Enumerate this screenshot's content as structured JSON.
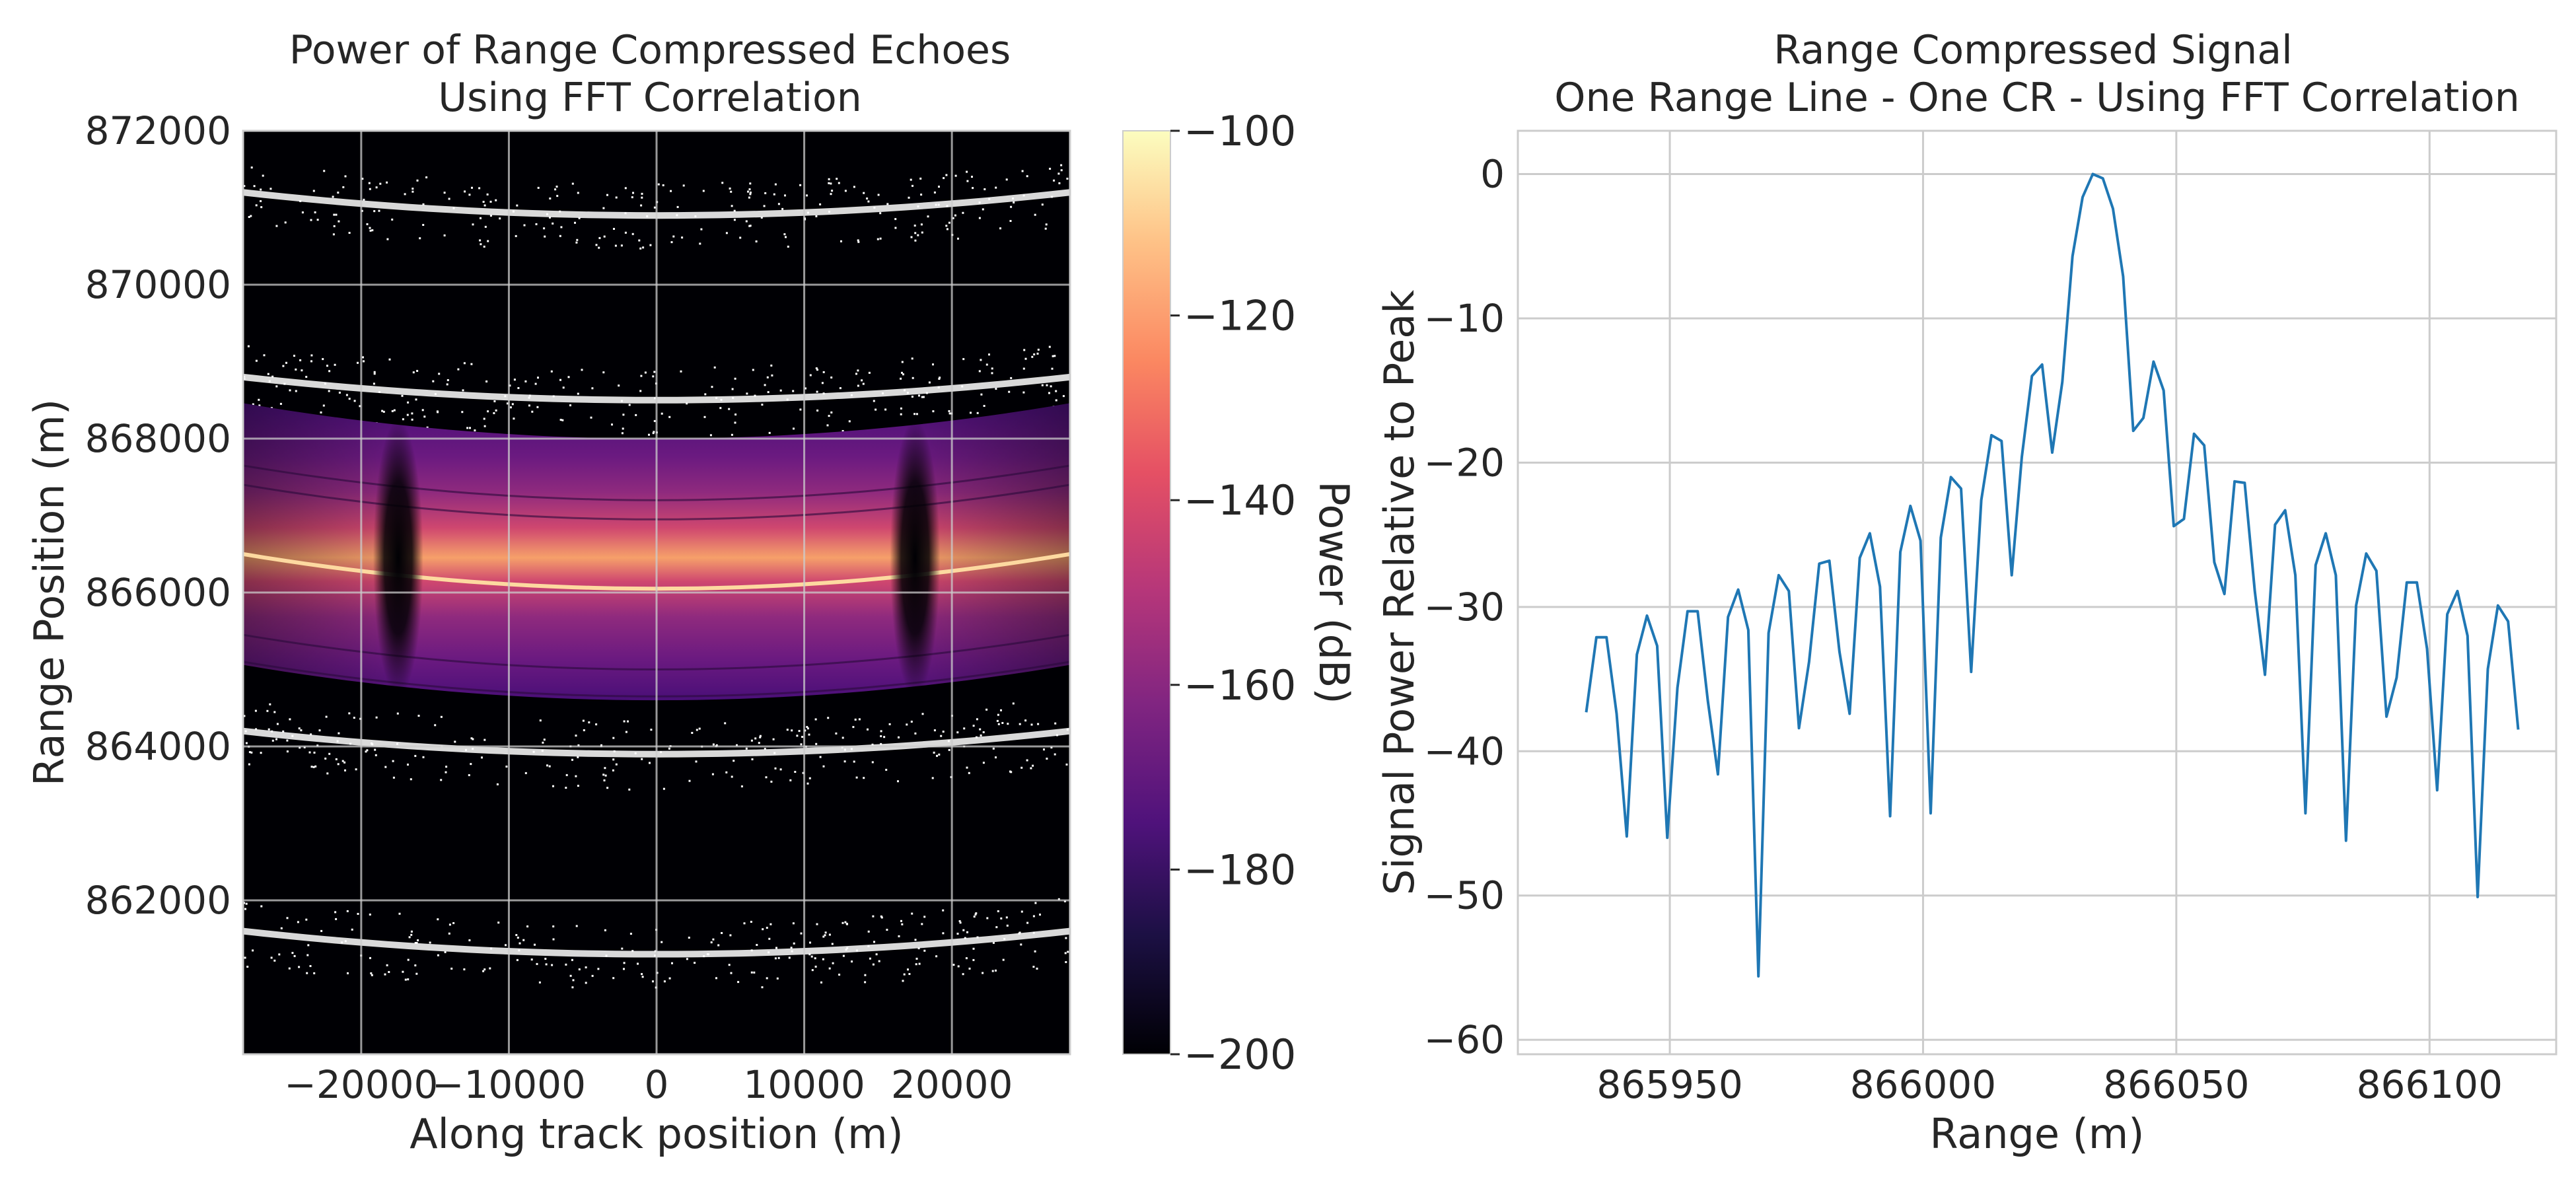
{
  "chart_data": [
    {
      "type": "heatmap",
      "title": [
        "Power of Range Compressed Echoes",
        "Using FFT Correlation"
      ],
      "xlabel": "Along track position (m)",
      "ylabel": "Range Position (m)",
      "xlim": [
        -28000,
        28000
      ],
      "ylim": [
        860000,
        872000
      ],
      "xticks": [
        -20000,
        -10000,
        0,
        10000,
        20000
      ],
      "xtick_labels": [
        "−20000",
        "−10000",
        "0",
        "10000",
        "20000"
      ],
      "yticks": [
        862000,
        864000,
        866000,
        868000,
        870000,
        872000
      ],
      "ytick_labels": [
        "862000",
        "864000",
        "866000",
        "868000",
        "870000",
        "872000"
      ],
      "grid": true,
      "colormap": "magma",
      "colorbar": {
        "label": "Power (dB)",
        "range": [
          -200,
          -100
        ],
        "ticks": [
          -200,
          -180,
          -160,
          -140,
          -120,
          -100
        ],
        "tick_labels": [
          "−200",
          "−180",
          "−160",
          "−140",
          "−120",
          "−100"
        ]
      },
      "signal_band": {
        "range_low": 864600,
        "range_high": 868000,
        "curvature_m": 460
      },
      "peak_curve": {
        "center_range": 866050,
        "edge_range": 866500
      },
      "null_columns_along_track": [
        -17500,
        17500
      ],
      "noise_arcs_center_range": [
        861300,
        863900,
        868500,
        870900
      ]
    },
    {
      "type": "line",
      "title": [
        "Range Compressed Signal",
        "One Range Line - One CR - Using FFT Correlation"
      ],
      "xlabel": "Range  (m)",
      "ylabel": "Signal Power Relative to Peak",
      "xlim": [
        865920,
        866125
      ],
      "ylim": [
        -61,
        3
      ],
      "xticks": [
        865950,
        866000,
        866050,
        866100
      ],
      "xtick_labels": [
        "865950",
        "866000",
        "866050",
        "866100"
      ],
      "yticks": [
        0,
        -10,
        -20,
        -30,
        -40,
        -50,
        -60
      ],
      "ytick_labels": [
        "0",
        "−10",
        "−20",
        "−30",
        "−40",
        "−50",
        "−60"
      ],
      "grid": true,
      "series": [
        {
          "color": "#1f77b4",
          "x": [
            865933.5,
            865935.5,
            865937.5,
            865939.5,
            865941.5,
            865943.5,
            865945.5,
            865947.5,
            865949.5,
            865951.5,
            865953.5,
            865955.5,
            865957.5,
            865959.5,
            865961.5,
            865963.5,
            865965.5,
            865967.5,
            865969.5,
            865971.5,
            865973.5,
            865975.5,
            865977.5,
            865979.5,
            865981.5,
            865983.5,
            865985.5,
            865987.5,
            865989.5,
            865991.5,
            865993.5,
            865995.5,
            865997.5,
            865999.5,
            866001.5,
            866003.5,
            866005.5,
            866007.5,
            866009.5,
            866011.5,
            866013.5,
            866015.5,
            866017.5,
            866019.5,
            866021.5,
            866023.5,
            866025.5,
            866027.5,
            866029.5,
            866031.5,
            866033.5,
            866035.5,
            866037.5,
            866039.5,
            866041.5,
            866043.5,
            866045.5,
            866047.5,
            866049.5,
            866051.5,
            866053.5,
            866055.5,
            866057.5,
            866059.5,
            866061.5,
            866063.5,
            866065.5,
            866067.5,
            866069.5,
            866071.5,
            866073.5,
            866075.5,
            866077.5,
            866079.5,
            866081.5,
            866083.5,
            866085.5,
            866087.5,
            866089.5,
            866091.5,
            866093.5,
            866095.5,
            866097.5,
            866099.5,
            866101.5,
            866103.5,
            866105.5,
            866107.5,
            866109.5,
            866111.5,
            866113.5,
            866115.5,
            866117.5
          ],
          "y": [
            -37.3,
            -32.1,
            -32.1,
            -37.4,
            -45.9,
            -33.3,
            -30.6,
            -32.7,
            -46.0,
            -35.6,
            -30.3,
            -30.3,
            -36.5,
            -41.6,
            -30.7,
            -28.8,
            -31.6,
            -55.6,
            -31.8,
            -27.8,
            -28.9,
            -38.4,
            -33.8,
            -27.0,
            -26.8,
            -33.1,
            -37.4,
            -26.6,
            -24.9,
            -28.6,
            -44.5,
            -26.2,
            -23.0,
            -25.4,
            -44.3,
            -25.2,
            -21.0,
            -21.8,
            -34.5,
            -22.6,
            -18.1,
            -18.5,
            -27.8,
            -19.6,
            -14.0,
            -13.2,
            -19.3,
            -14.4,
            -5.7,
            -1.6,
            0.0,
            -0.3,
            -2.4,
            -7.1,
            -17.8,
            -16.9,
            -13.0,
            -15.0,
            -24.4,
            -23.9,
            -18.0,
            -18.8,
            -26.9,
            -29.1,
            -21.3,
            -21.4,
            -28.9,
            -34.7,
            -24.3,
            -23.3,
            -27.8,
            -44.3,
            -27.1,
            -24.9,
            -27.8,
            -46.2,
            -29.9,
            -26.3,
            -27.5,
            -37.6,
            -34.9,
            -28.3,
            -28.3,
            -32.9,
            -42.7,
            -30.5,
            -28.9,
            -32.0,
            -50.1,
            -34.3,
            -29.9,
            -31.0,
            -38.5
          ]
        }
      ]
    }
  ]
}
